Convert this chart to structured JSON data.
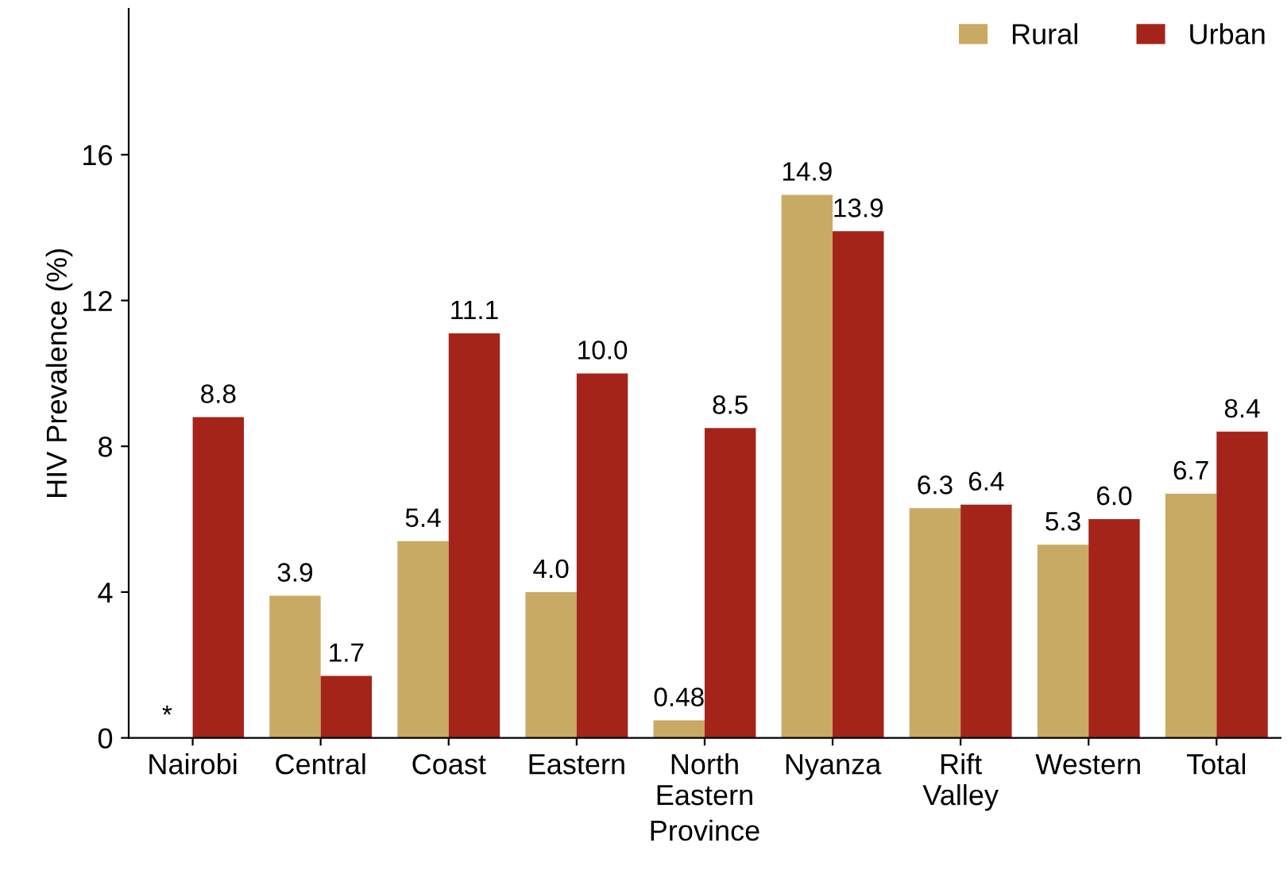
{
  "chart_data": {
    "type": "bar",
    "xlabel": "Province",
    "ylabel": "HIV Prevalence (%)",
    "categories": [
      "Nairobi",
      "Central",
      "Coast",
      "Eastern",
      "North\nEastern",
      "Nyanza",
      "Rift\nValley",
      "Western",
      "Total"
    ],
    "series": [
      {
        "name": "Rural",
        "color": "#c8aa64",
        "values": [
          null,
          3.9,
          5.4,
          4.0,
          0.48,
          14.9,
          6.3,
          5.3,
          6.7
        ],
        "value_labels": [
          "*",
          "3.9",
          "5.4",
          "4.0",
          "0.48",
          "14.9",
          "6.3",
          "5.3",
          "6.7"
        ]
      },
      {
        "name": "Urban",
        "color": "#a52419",
        "values": [
          8.8,
          1.7,
          11.1,
          10.0,
          8.5,
          13.9,
          6.4,
          6.0,
          8.4
        ],
        "value_labels": [
          "8.8",
          "1.7",
          "11.1",
          "10.0",
          "8.5",
          "13.9",
          "6.4",
          "6.0",
          "8.4"
        ]
      }
    ],
    "ylim": [
      0,
      20
    ],
    "yticks": [
      0,
      4,
      8,
      12,
      16
    ],
    "grid": false,
    "legend": "top right"
  }
}
